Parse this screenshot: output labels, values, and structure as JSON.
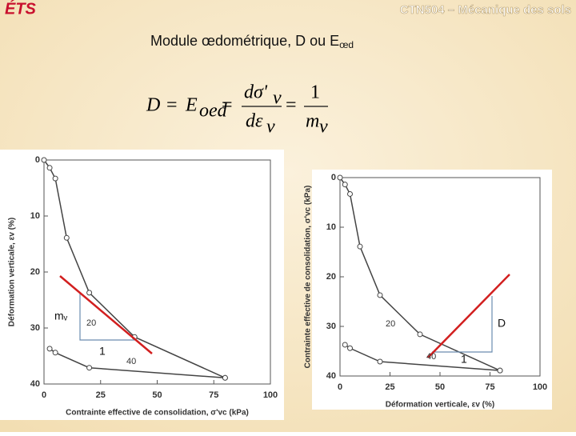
{
  "header": {
    "logo": "ÉTS",
    "course": "CTN504 – Mécanique des sols"
  },
  "title": {
    "text": "Module œdométrique, D ou E",
    "sub": "œd"
  },
  "formula": {
    "d_lhs": "D",
    "eq1": "=",
    "e": "E",
    "e_sub": "oed",
    "eq2": "=",
    "num": "dσ'",
    "num_sub": "v",
    "den": "dε",
    "den_sub": "v",
    "eq3": "=",
    "one": "1",
    "m": "m",
    "m_sub": "v"
  },
  "chart_data": [
    {
      "type": "line",
      "y_inverted": true,
      "xlabel": "Contrainte effective de consolidation, σ'vc (kPa)",
      "ylabel": "Déformation verticale, εv (%)",
      "xlim": [
        0,
        100
      ],
      "xticks": [
        0,
        25,
        50,
        75,
        100
      ],
      "ylim": [
        0,
        40
      ],
      "yticks": [
        0,
        10,
        20,
        30,
        40
      ],
      "series": [
        {
          "color": "#444",
          "x": [
            0,
            2.5,
            5,
            10,
            20,
            40,
            80
          ],
          "values": [
            0,
            1.4,
            3.3,
            13.9,
            23.7,
            31.6,
            38.9
          ]
        },
        {
          "color": "#444",
          "x": [
            2.5,
            5,
            20,
            80
          ],
          "values": [
            33.7,
            34.4,
            37.1,
            38.9
          ]
        }
      ],
      "annotations": [
        "20",
        "40",
        "mᵥ",
        "1"
      ]
    },
    {
      "type": "line",
      "y_inverted": true,
      "xlabel": "Déformation verticale, εv (%)",
      "ylabel": "Contrainte effective de consolidation, σ'vc (kPa)",
      "xlim": [
        0,
        100
      ],
      "xticks": [
        0,
        25,
        50,
        75,
        100
      ],
      "ylim": [
        0,
        40
      ],
      "yticks": [
        0,
        10,
        20,
        30,
        40
      ],
      "series": [
        {
          "color": "#444",
          "x": [
            0,
            2.5,
            5,
            10,
            20,
            40,
            80
          ],
          "values": [
            0,
            1.4,
            3.3,
            13.9,
            23.7,
            31.6,
            38.9
          ]
        },
        {
          "color": "#444",
          "x": [
            2.5,
            5,
            20,
            80
          ],
          "values": [
            33.7,
            34.4,
            37.1,
            38.9
          ]
        }
      ],
      "annotations": [
        "20",
        "40",
        "D",
        "1"
      ]
    }
  ]
}
